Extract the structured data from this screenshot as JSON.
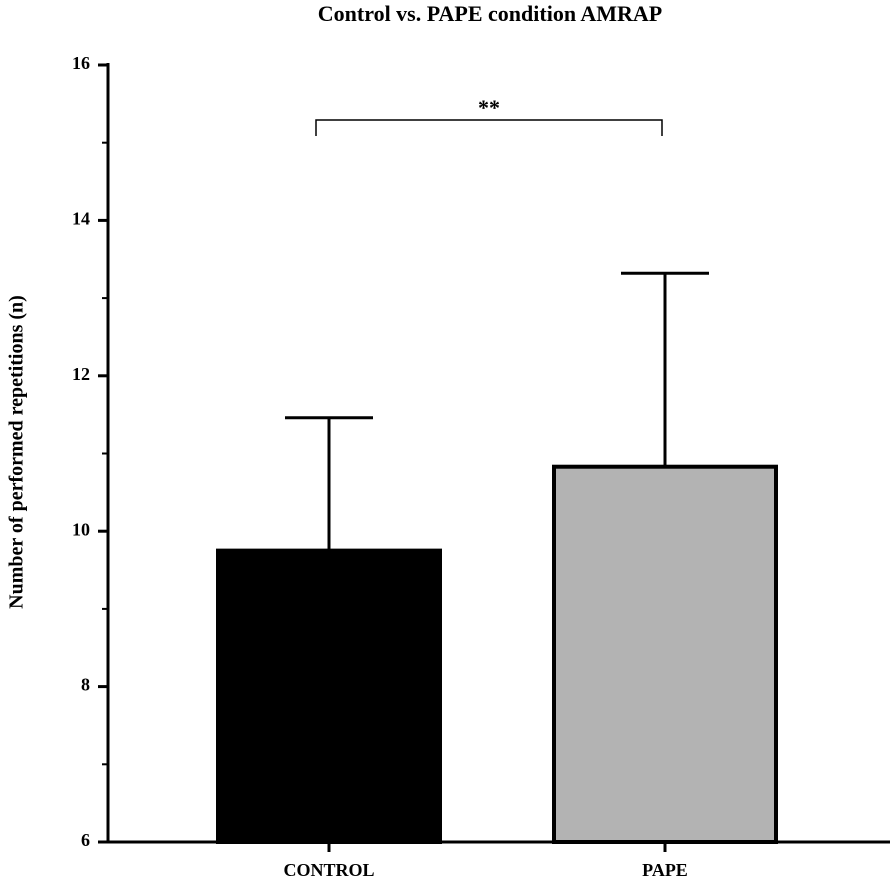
{
  "chart_data": {
    "type": "bar",
    "title": "Control vs. PAPE condition AMRAP",
    "y_label": "Number of performed repetitions (n)",
    "categories": [
      "CONTROL",
      "PAPE"
    ],
    "values": [
      9.75,
      10.83
    ],
    "errors": [
      1.71,
      2.49
    ],
    "colors": [
      "#000000",
      "#b3b3b3"
    ],
    "ylim": [
      6,
      16
    ],
    "yticks": [
      6,
      8,
      10,
      12,
      14,
      16
    ],
    "yminor": [
      7,
      9,
      11,
      13,
      15
    ],
    "grid": false,
    "annotations": [
      {
        "text": "**",
        "from": 0,
        "to": 1
      }
    ]
  }
}
